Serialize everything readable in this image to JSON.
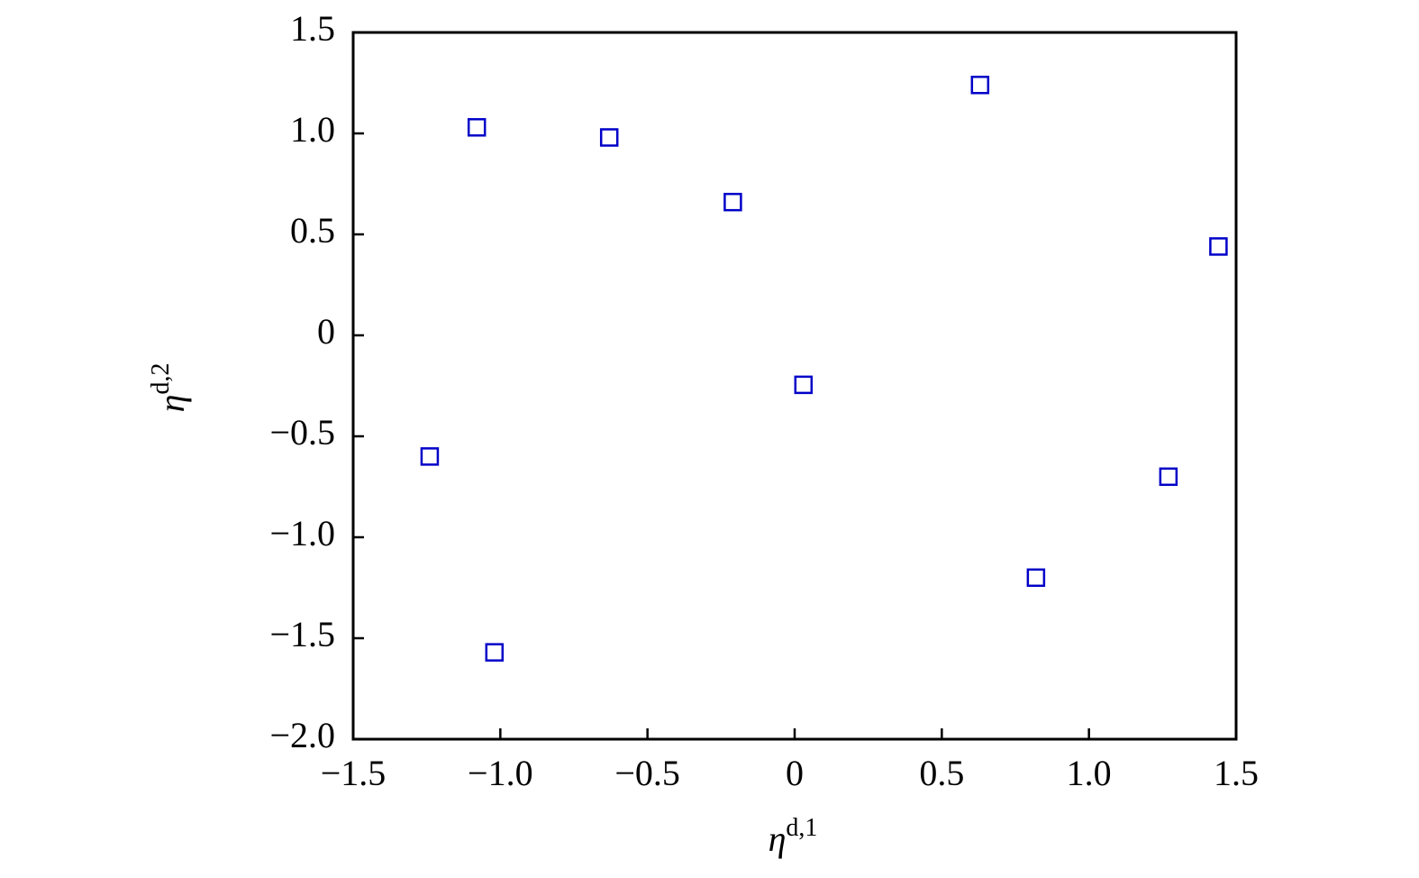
{
  "chart_data": {
    "type": "scatter",
    "xlabel": "η",
    "xlabel_superscript": "d,1",
    "ylabel": "η",
    "ylabel_superscript": "d,2",
    "x": [
      -1.08,
      -0.63,
      -0.21,
      0.63,
      1.44,
      0.03,
      -1.24,
      1.27,
      0.82,
      -1.02
    ],
    "series": [
      {
        "color": "#0000c8",
        "values": [
          1.03,
          0.98,
          0.66,
          1.24,
          0.44,
          -0.245,
          -0.6,
          -0.7,
          -1.2,
          -1.57
        ]
      }
    ],
    "xlim": [
      -1.5,
      1.5
    ],
    "xticks": [
      {
        "value": -1.5,
        "label": "−1.5"
      },
      {
        "value": -1.0,
        "label": "−1.0"
      },
      {
        "value": -0.5,
        "label": "−0.5"
      },
      0,
      0.5,
      {
        "value": 1.0,
        "label": "1.0"
      },
      1.5
    ],
    "ylim": [
      -2.0,
      1.5
    ],
    "yticks": [
      {
        "value": -2.0,
        "label": "−2.0"
      },
      {
        "value": -1.5,
        "label": "−1.5"
      },
      {
        "value": -1.0,
        "label": "−1.0"
      },
      {
        "value": -0.5,
        "label": "−0.5"
      },
      0,
      0.5,
      {
        "value": 1.0,
        "label": "1.0"
      },
      1.5
    ],
    "marker": "square"
  }
}
